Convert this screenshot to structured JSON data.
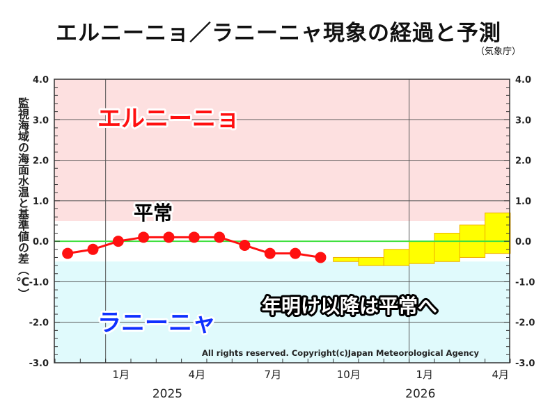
{
  "chart_data": {
    "type": "line",
    "title": "エルニーニョ／ラニーニャ現象の経過と予測",
    "source": "（気象庁）",
    "ylabel": "監視海域の海面水温と基準値の差（℃）",
    "ylim": [
      -3.0,
      4.0
    ],
    "yticks": [
      "4.0",
      "3.0",
      "2.0",
      "1.0",
      "0.0",
      "-1.0",
      "-2.0",
      "-3.0"
    ],
    "xticks": [
      {
        "label": "1月",
        "month": 2
      },
      {
        "label": "4月",
        "month": 5
      },
      {
        "label": "7月",
        "month": 8
      },
      {
        "label": "10月",
        "month": 11
      },
      {
        "label": "1月",
        "month": 14
      },
      {
        "label": "4月",
        "month": 17
      }
    ],
    "years": [
      {
        "label": "2025",
        "month": 4
      },
      {
        "label": "2026",
        "month": 14
      }
    ],
    "observed": {
      "months": [
        "2024-11",
        "2024-12",
        "2025-01",
        "2025-02",
        "2025-03",
        "2025-04",
        "2025-05",
        "2025-06",
        "2025-07",
        "2025-08",
        "2025-09"
      ],
      "values": [
        -0.3,
        -0.2,
        0.0,
        0.1,
        0.1,
        0.1,
        0.1,
        -0.1,
        -0.3,
        -0.3,
        -0.4
      ]
    },
    "forecast": {
      "months": [
        "2025-10",
        "2025-11",
        "2025-12",
        "2026-01",
        "2026-02",
        "2026-03",
        "2026-04"
      ],
      "upper": [
        -0.4,
        -0.4,
        -0.2,
        0.0,
        0.2,
        0.4,
        0.7
      ],
      "lower": [
        -0.5,
        -0.6,
        -0.6,
        -0.55,
        -0.5,
        -0.4,
        -0.3
      ]
    },
    "bands": {
      "el_nino_threshold": 0.5,
      "la_nina_threshold": -0.5
    },
    "annotations": {
      "el_nino": "エルニーニョ",
      "normal": "平常",
      "la_nina": "ラニーニャ",
      "message": "年明け以降は平常へ",
      "copyright": "All rights reserved. Copyright(c)Japan Meteorological Agency"
    },
    "colors": {
      "el_nino_band": "#fde0e0",
      "la_nina_band": "#e0fafc",
      "observed": "#ff1010",
      "forecast": "#ffff00",
      "forecast_edge": "#f0b000",
      "zero_line": "#40e040"
    }
  }
}
